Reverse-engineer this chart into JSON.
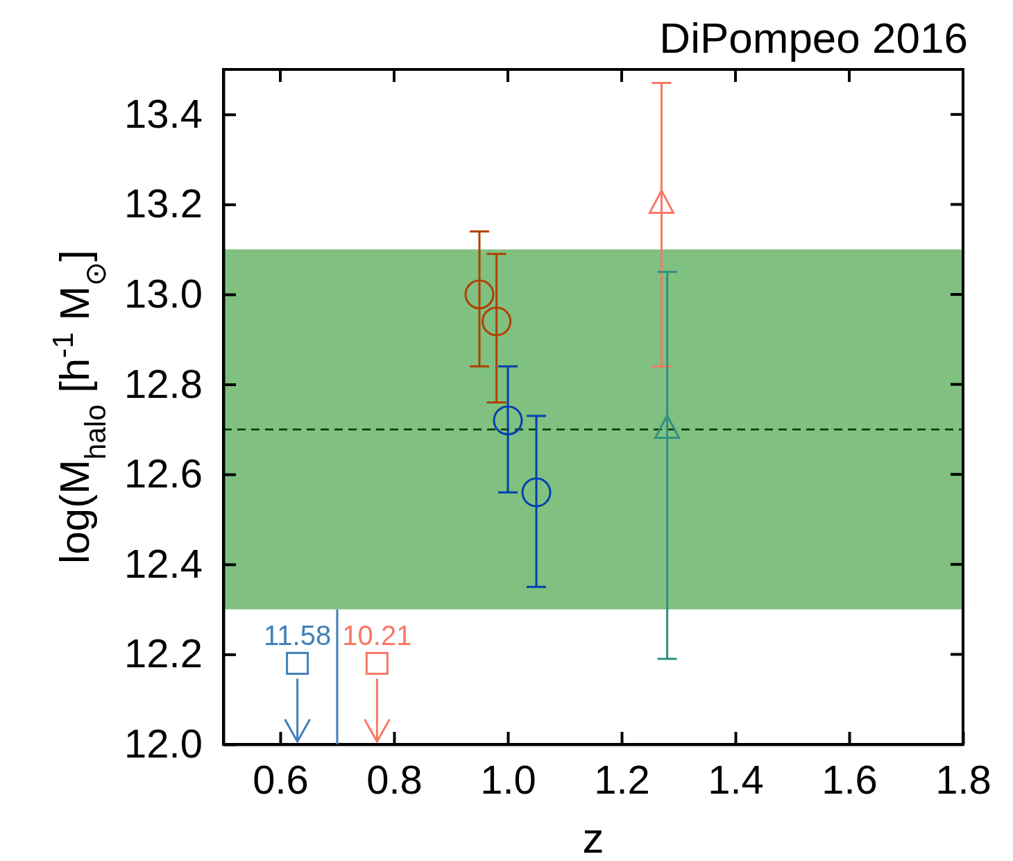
{
  "chart_data": {
    "type": "scatter",
    "title": "DiPompeo 2016",
    "xlabel": "z",
    "ylabel": "log(M$_{halo}$ [h$^{-1}$ M$_{⊙}$]",
    "xlim": [
      0.5,
      1.8
    ],
    "xticks": [
      0.6,
      0.8,
      {
        "value": 1.0,
        "label": "1.0"
      },
      1.2,
      1.4,
      1.6,
      1.8
    ],
    "ylim": [
      12.0,
      13.5
    ],
    "yticks": [
      {
        "value": 12.0,
        "label": "12.0"
      },
      12.2,
      12.4,
      12.6,
      12.8,
      {
        "value": 13.0,
        "label": "13.0"
      },
      13.2,
      13.4
    ],
    "bands": [
      {
        "axis": "y",
        "from": 12.3,
        "to": 13.1,
        "color": "#80c080"
      }
    ],
    "ref_lines": [
      {
        "axis": "y",
        "value": 12.7,
        "color": "#003300",
        "line_style": "dashed"
      }
    ],
    "series": [
      {
        "type": "scatter",
        "color": "#b04000",
        "marker": "circle",
        "x": [
          0.95
        ],
        "values": [
          13.0
        ],
        "errors": [
          [
            12.84,
            13.14
          ]
        ]
      },
      {
        "type": "scatter",
        "color": "#b04000",
        "marker": "circle",
        "x": [
          0.98
        ],
        "values": [
          12.94
        ],
        "errors": [
          [
            12.76,
            13.09
          ]
        ]
      },
      {
        "type": "scatter",
        "color": "#0040b0",
        "marker": "circle",
        "x": [
          1.0
        ],
        "values": [
          12.72
        ],
        "errors": [
          [
            12.56,
            12.84
          ]
        ]
      },
      {
        "type": "scatter",
        "color": "#0040b0",
        "marker": "circle",
        "x": [
          1.05
        ],
        "values": [
          12.56
        ],
        "errors": [
          [
            12.35,
            12.73
          ]
        ]
      },
      {
        "type": "scatter",
        "color": "#f87868",
        "marker": "triangle",
        "x": [
          1.27
        ],
        "values": [
          13.2
        ],
        "errors": [
          [
            12.84,
            13.47
          ]
        ]
      },
      {
        "type": "scatter",
        "color": "#309080",
        "marker": "triangle",
        "x": [
          1.28
        ],
        "values": [
          12.7
        ],
        "errors": [
          [
            12.19,
            13.05
          ]
        ]
      },
      {
        "type": "scatter",
        "color": "#4080b8",
        "marker": "square",
        "x": [
          0.63
        ],
        "values": [
          12.18
        ]
      },
      {
        "type": "scatter",
        "color": "#f87868",
        "marker": "square",
        "x": [
          0.77
        ],
        "values": [
          12.18
        ]
      },
      {
        "type": "line",
        "color": "#4080b8",
        "x": [
          0.7,
          0.7
        ],
        "values": [
          12.0,
          12.3
        ]
      }
    ],
    "annotations": [
      {
        "text": "11.58",
        "x": 0.63,
        "y": 12.18
      },
      {
        "text": "10.21",
        "x": 0.77,
        "y": 12.18
      }
    ]
  }
}
